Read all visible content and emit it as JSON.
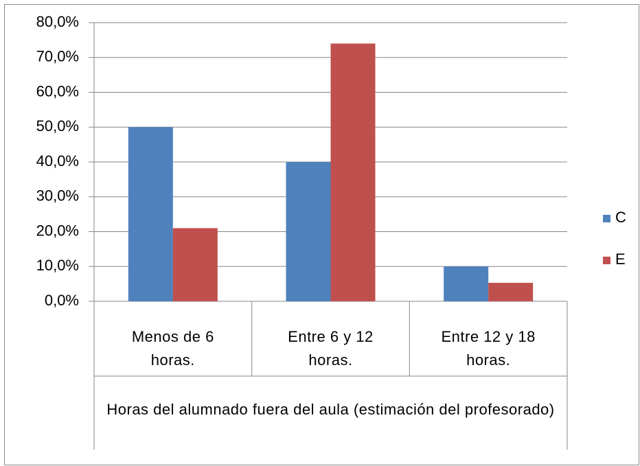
{
  "chart_data": {
    "type": "bar",
    "categories": [
      "Menos de 6 horas.",
      "Entre 6 y 12 horas.",
      "Entre 12 y 18 horas."
    ],
    "x_axis_title": "Horas del alumnado fuera del aula (estimación del profesorado)",
    "series": [
      {
        "name": "C",
        "color": "#4f81bd",
        "values": [
          50,
          40,
          10
        ]
      },
      {
        "name": "E",
        "color": "#c0504d",
        "values": [
          21,
          74,
          5.3
        ]
      }
    ],
    "ylim": [
      0,
      80
    ],
    "yticks": [
      {
        "value": 0,
        "label": "0,0%"
      },
      {
        "value": 10,
        "label": "10,0%"
      },
      {
        "value": 20,
        "label": "20,0%"
      },
      {
        "value": 30,
        "label": "30,0%"
      },
      {
        "value": 40,
        "label": "40,0%"
      },
      {
        "value": 50,
        "label": "50,0%"
      },
      {
        "value": 60,
        "label": "60,0%"
      },
      {
        "value": 70,
        "label": "70,0%"
      },
      {
        "value": 80,
        "label": "80,0%"
      }
    ],
    "grid": true,
    "legend": "right"
  }
}
